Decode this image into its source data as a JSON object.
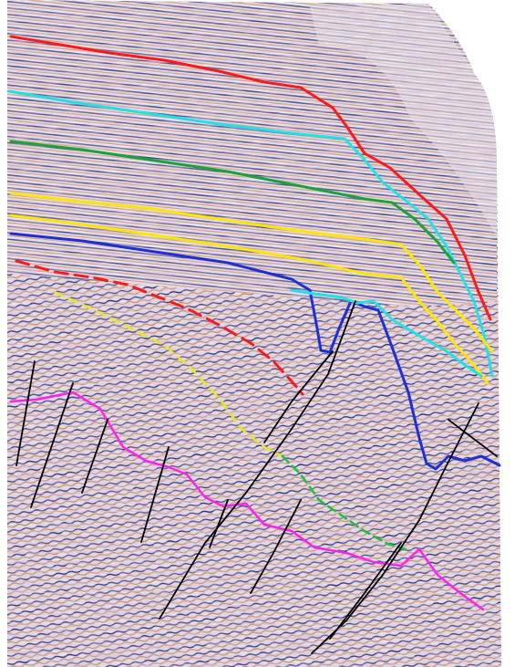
{
  "image": {
    "background": "#ffffff",
    "palette": {
      "trace_dark": "#1c2d7a",
      "trace_light": "#c98a55",
      "trace_pale": "#d9d6e6"
    }
  },
  "horizons": [
    {
      "name": "red-horizon-upper",
      "color": "#ff1a1a"
    },
    {
      "name": "cyan-horizon",
      "color": "#22e1e6"
    },
    {
      "name": "green-horizon",
      "color": "#1aa33a"
    },
    {
      "name": "yellow-horizon-upper",
      "color": "#ffe600"
    },
    {
      "name": "yellow-horizon-lower",
      "color": "#ffe600"
    },
    {
      "name": "blue-horizon",
      "color": "#1f2fd6"
    },
    {
      "name": "red-horizon-dashed",
      "color": "#ff1a1a"
    },
    {
      "name": "yellow-horizon-dashed",
      "color": "#e8e820"
    },
    {
      "name": "green-horizon-dashed",
      "color": "#22c03a"
    },
    {
      "name": "magenta-horizon",
      "color": "#ff22ee"
    }
  ],
  "faults": {
    "color": "#000000",
    "count": 11
  }
}
